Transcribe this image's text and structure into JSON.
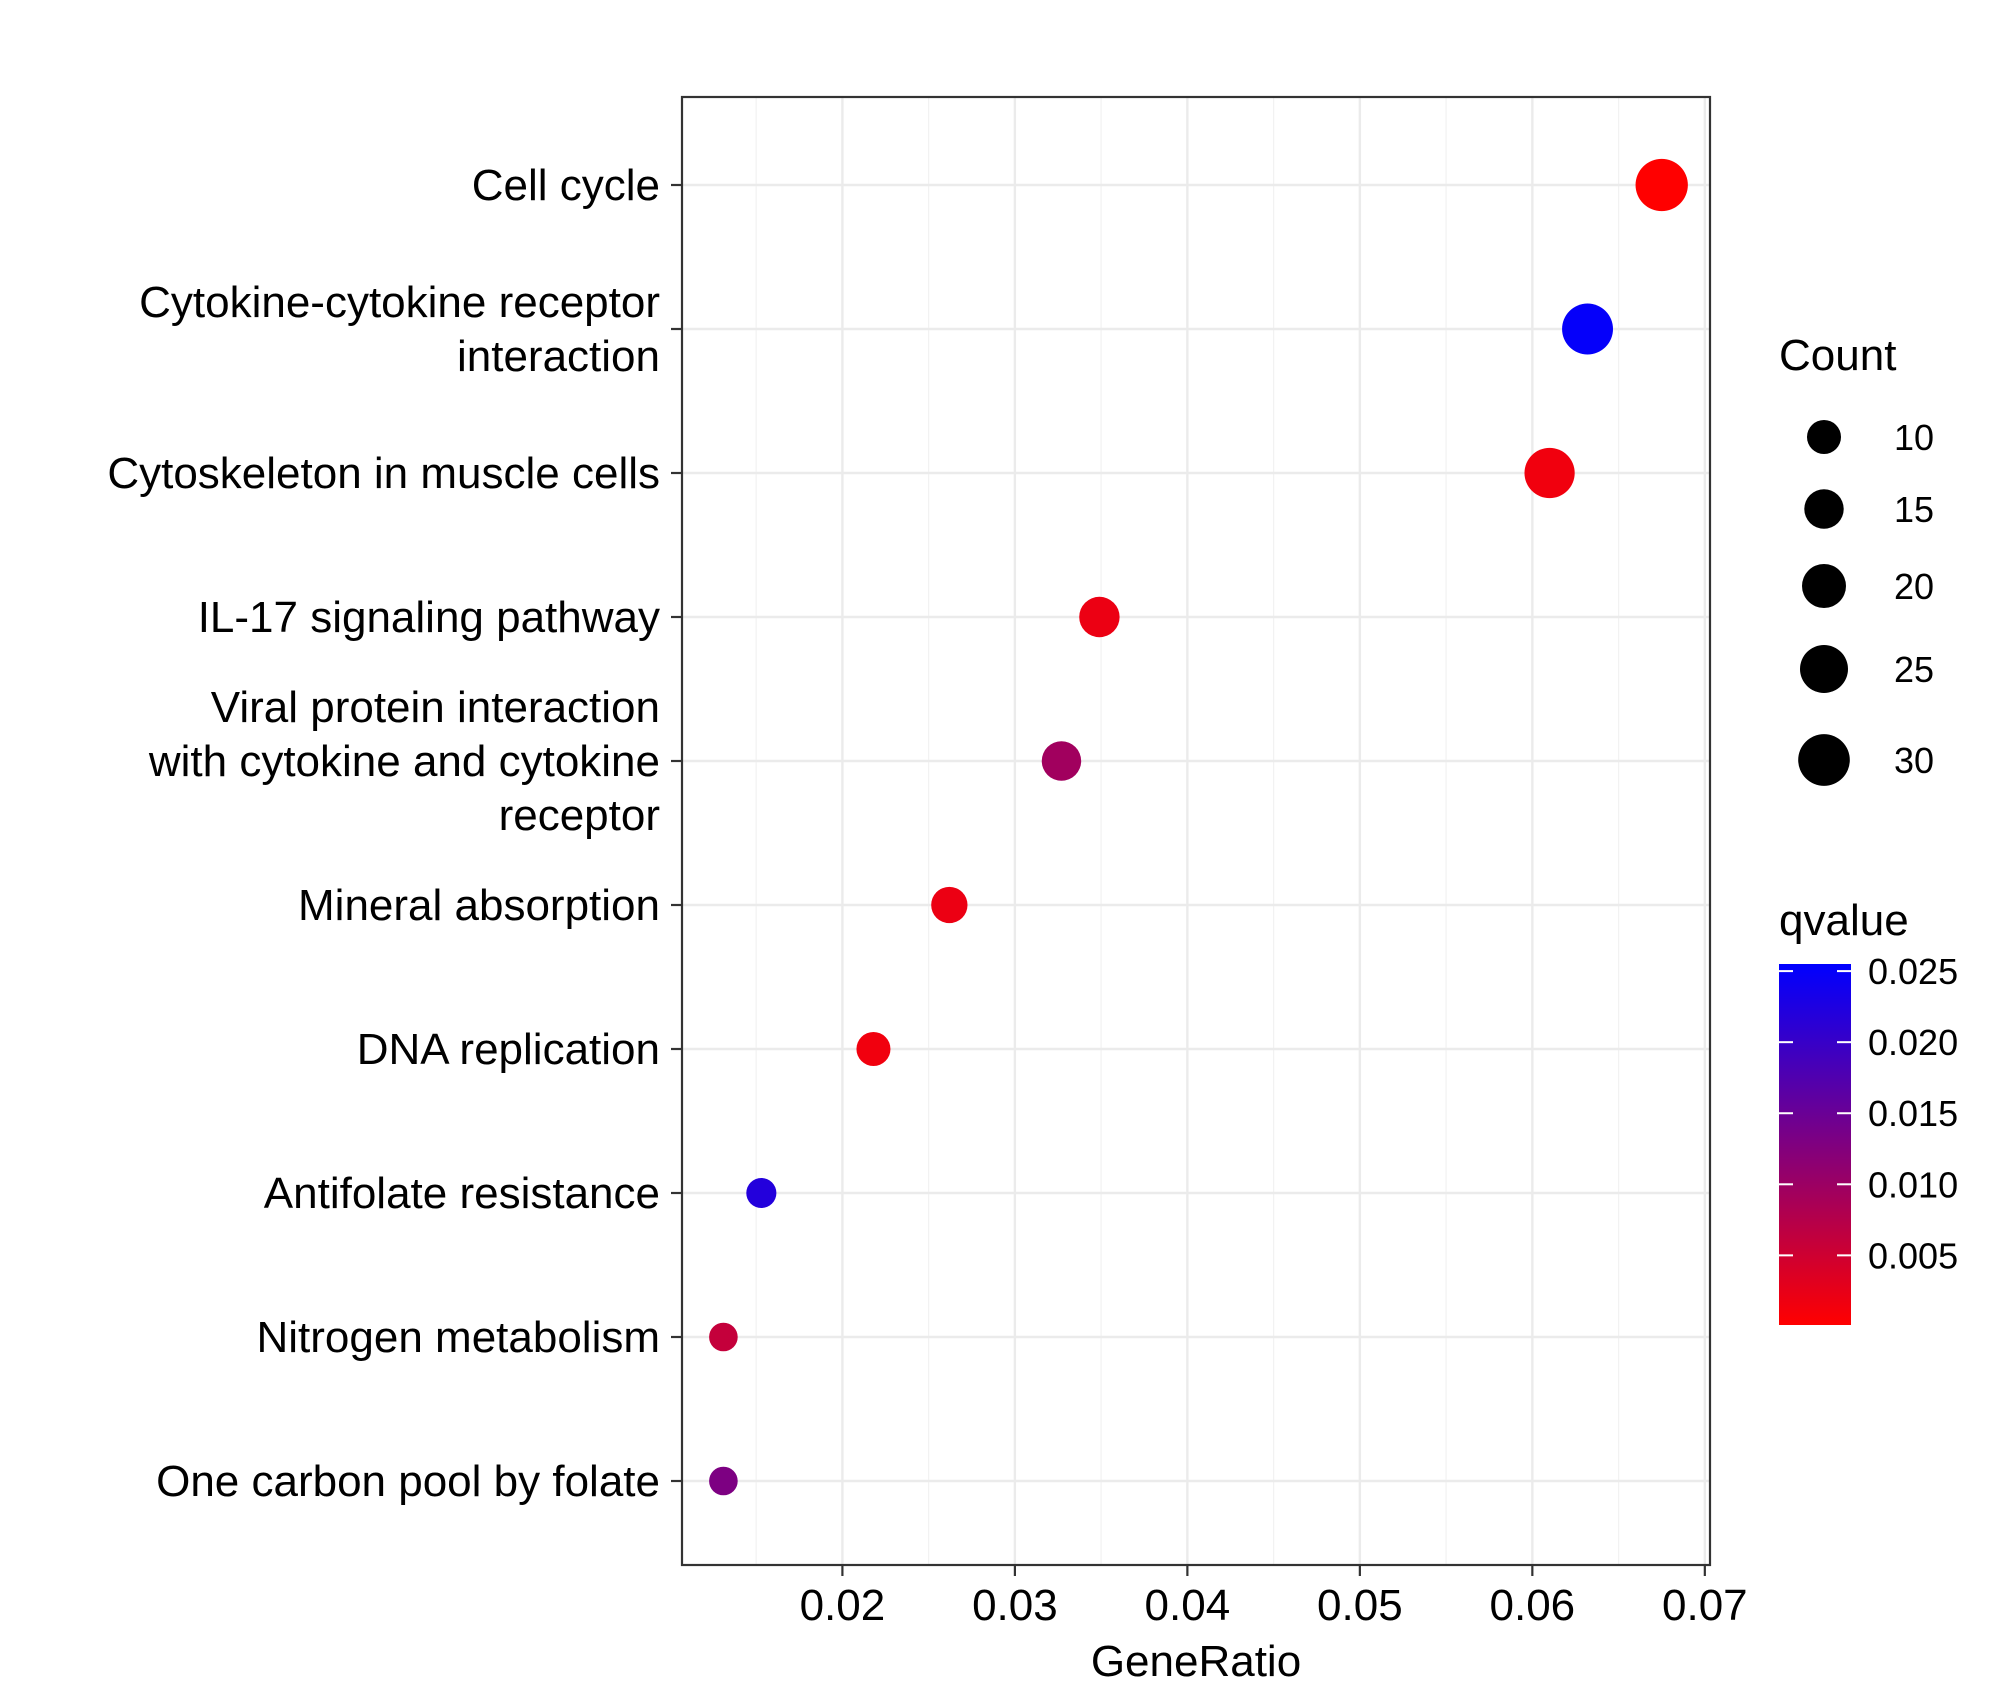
{
  "chart_data": {
    "type": "scatter",
    "xlabel": "GeneRatio",
    "ylabel": "",
    "xlim": [
      0.0107,
      0.0703
    ],
    "xticks": [
      0.02,
      0.03,
      0.04,
      0.05,
      0.06,
      0.07
    ],
    "xtick_labels": [
      "0.02",
      "0.03",
      "0.04",
      "0.05",
      "0.06",
      "0.07"
    ],
    "grid": true,
    "categories": [
      "Cell cycle",
      "Cytokine-cytokine receptor interaction",
      "Cytoskeleton in muscle cells",
      "IL-17 signaling pathway",
      "Viral protein interaction with cytokine and cytokine receptor",
      "Mineral absorption",
      "DNA replication",
      "Antifolate resistance",
      "Nitrogen metabolism",
      "One carbon pool by folate"
    ],
    "category_labels": [
      [
        "Cell cycle"
      ],
      [
        "Cytokine-cytokine receptor",
        "interaction"
      ],
      [
        "Cytoskeleton in muscle cells"
      ],
      [
        "IL-17 signaling pathway"
      ],
      [
        "Viral protein interaction",
        "with cytokine and cytokine",
        "receptor"
      ],
      [
        "Mineral absorption"
      ],
      [
        "DNA replication"
      ],
      [
        "Antifolate resistance"
      ],
      [
        "Nitrogen metabolism"
      ],
      [
        "One carbon pool by folate"
      ]
    ],
    "points": [
      {
        "category": "Cell cycle",
        "x": 0.0675,
        "count": 31,
        "qvalue": 0.0001
      },
      {
        "category": "Cytokine-cytokine receptor interaction",
        "x": 0.0632,
        "count": 29,
        "qvalue": 0.025
      },
      {
        "category": "Cytoskeleton in muscle cells",
        "x": 0.061,
        "count": 28,
        "qvalue": 0.0015
      },
      {
        "category": "IL-17 signaling pathway",
        "x": 0.0349,
        "count": 16,
        "qvalue": 0.002
      },
      {
        "category": "Viral protein interaction with cytokine and cytokine receptor",
        "x": 0.0327,
        "count": 15,
        "qvalue": 0.0095
      },
      {
        "category": "Mineral absorption",
        "x": 0.0262,
        "count": 12,
        "qvalue": 0.002
      },
      {
        "category": "DNA replication",
        "x": 0.0218,
        "count": 10,
        "qvalue": 0.0015
      },
      {
        "category": "Antifolate resistance",
        "x": 0.0153,
        "count": 7,
        "qvalue": 0.022
      },
      {
        "category": "Nitrogen metabolism",
        "x": 0.0131,
        "count": 6,
        "qvalue": 0.006
      },
      {
        "category": "One carbon pool by folate",
        "x": 0.0131,
        "count": 6,
        "qvalue": 0.013
      }
    ],
    "legend_size": {
      "title": "Count",
      "values": [
        10,
        15,
        20,
        25,
        30
      ],
      "labels": [
        "10",
        "15",
        "20",
        "25",
        "30"
      ]
    },
    "legend_color": {
      "title": "qvalue",
      "low_color": "#FF0000",
      "high_color": "#0000FF",
      "range": [
        0.0001,
        0.0255
      ],
      "ticks": [
        0.005,
        0.01,
        0.015,
        0.02,
        0.025
      ],
      "tick_labels": [
        "0.005",
        "0.010",
        "0.015",
        "0.020",
        "0.025"
      ]
    },
    "legend_placement": "right"
  }
}
